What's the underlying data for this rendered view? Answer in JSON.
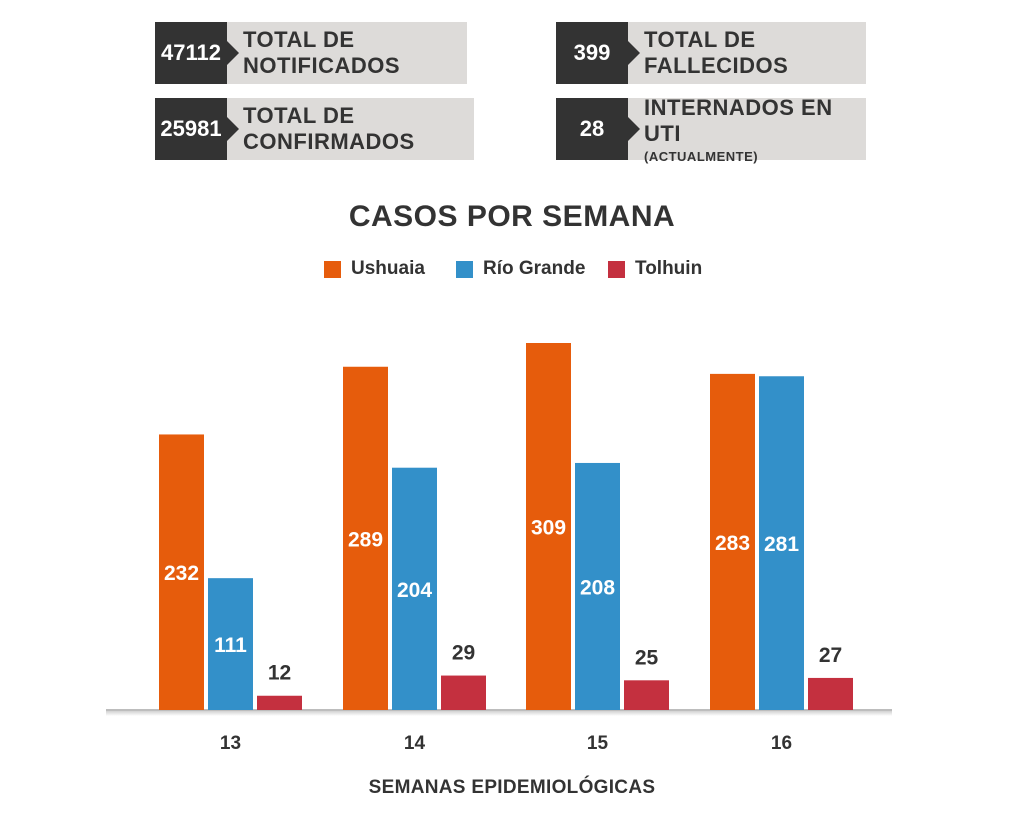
{
  "stats": {
    "notificados": {
      "value": "47112",
      "label": "TOTAL DE NOTIFICADOS"
    },
    "confirmados": {
      "value": "25981",
      "label": "TOTAL DE CONFIRMADOS"
    },
    "fallecidos": {
      "value": "399",
      "label": "TOTAL DE FALLECIDOS"
    },
    "uti": {
      "value": "28",
      "label": "INTERNADOS EN UTI",
      "sublabel": "(ACTUALMENTE)"
    }
  },
  "chart_data": {
    "type": "bar",
    "title": "CASOS POR SEMANA",
    "xlabel": "SEMANAS EPIDEMIOLÓGICAS",
    "ylabel": "",
    "categories": [
      "13",
      "14",
      "15",
      "16"
    ],
    "series": [
      {
        "name": "Ushuaia",
        "color": "#e65c0c",
        "values": [
          232,
          289,
          309,
          283
        ]
      },
      {
        "name": "Río Grande",
        "color": "#3390c9",
        "values": [
          111,
          204,
          208,
          281
        ]
      },
      {
        "name": "Tolhuin",
        "color": "#c4303f",
        "values": [
          12,
          29,
          25,
          27
        ]
      }
    ],
    "ylim": [
      0,
      320
    ],
    "grid": false,
    "legend": "top-center"
  }
}
